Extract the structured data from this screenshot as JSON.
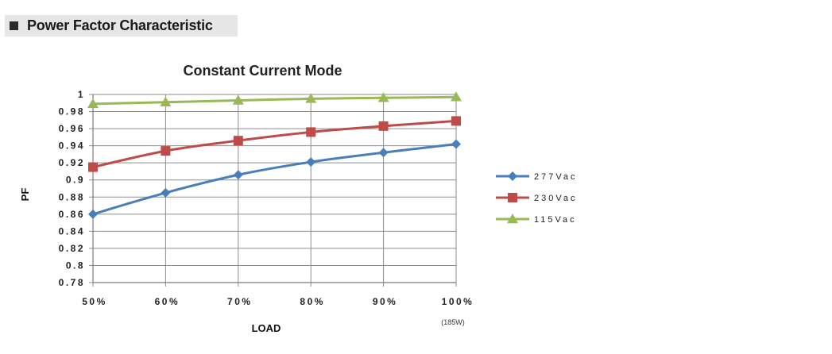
{
  "section": {
    "title": "Power Factor Characteristic"
  },
  "chart_data": {
    "type": "line",
    "title": "Constant Current Mode",
    "xlabel": "LOAD",
    "ylabel": "PF",
    "categories": [
      "50%",
      "60%",
      "70%",
      "80%",
      "90%",
      "100%"
    ],
    "x_note": "(185W)",
    "ylim": [
      0.78,
      1.0
    ],
    "yticks": [
      "0.78",
      "0.8",
      "0.82",
      "0.84",
      "0.86",
      "0.88",
      "0.9",
      "0.92",
      "0.94",
      "0.96",
      "0.98",
      "1"
    ],
    "grid": true,
    "legend_position": "right",
    "series": [
      {
        "name": "277Vac",
        "color": "#4a7ebb",
        "marker": "diamond",
        "values": [
          0.86,
          0.885,
          0.906,
          0.921,
          0.932,
          0.942
        ]
      },
      {
        "name": "230Vac",
        "color": "#be4b48",
        "marker": "square",
        "values": [
          0.915,
          0.934,
          0.946,
          0.956,
          0.963,
          0.969
        ]
      },
      {
        "name": "115Vac",
        "color": "#98b954",
        "marker": "triangle",
        "values": [
          0.989,
          0.991,
          0.993,
          0.995,
          0.996,
          0.997
        ]
      }
    ]
  }
}
